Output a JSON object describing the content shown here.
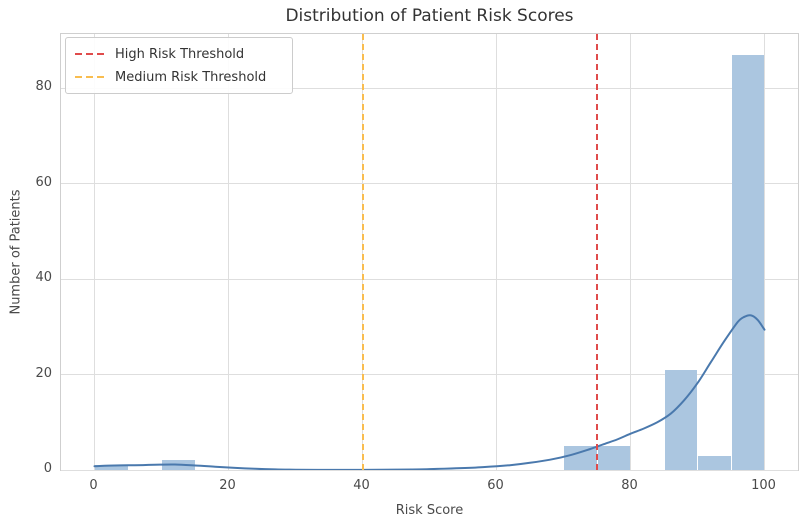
{
  "chart_data": {
    "type": "histogram",
    "title": "Distribution of Patient Risk Scores",
    "xlabel": "Risk Score",
    "ylabel": "Number of Patients",
    "xlim": [
      -5,
      105
    ],
    "ylim": [
      0,
      91.35
    ],
    "x_ticks": [
      0,
      20,
      40,
      60,
      80,
      100
    ],
    "y_ticks": [
      0,
      20,
      40,
      60,
      80
    ],
    "grid": true,
    "legend_position": "upper left",
    "bins": [
      {
        "x0": 0,
        "x1": 5,
        "count": 1
      },
      {
        "x0": 10,
        "x1": 15,
        "count": 2
      },
      {
        "x0": 70,
        "x1": 75,
        "count": 5
      },
      {
        "x0": 75,
        "x1": 80,
        "count": 5
      },
      {
        "x0": 85,
        "x1": 90,
        "count": 21
      },
      {
        "x0": 90,
        "x1": 95,
        "count": 3
      },
      {
        "x0": 95,
        "x1": 100,
        "count": 87
      }
    ],
    "kde_curve": [
      [
        0,
        0.8
      ],
      [
        3,
        0.95
      ],
      [
        6,
        1.0
      ],
      [
        9,
        1.1
      ],
      [
        12,
        1.15
      ],
      [
        15,
        0.95
      ],
      [
        18,
        0.7
      ],
      [
        21,
        0.45
      ],
      [
        24,
        0.25
      ],
      [
        27,
        0.12
      ],
      [
        30,
        0.06
      ],
      [
        35,
        0.03
      ],
      [
        40,
        0.03
      ],
      [
        45,
        0.08
      ],
      [
        50,
        0.18
      ],
      [
        54,
        0.35
      ],
      [
        58,
        0.6
      ],
      [
        62,
        1.0
      ],
      [
        65,
        1.5
      ],
      [
        68,
        2.15
      ],
      [
        71,
        3.1
      ],
      [
        74,
        4.4
      ],
      [
        76,
        5.4
      ],
      [
        78,
        6.4
      ],
      [
        80,
        7.6
      ],
      [
        82,
        8.7
      ],
      [
        84,
        10.0
      ],
      [
        86,
        11.8
      ],
      [
        88,
        14.6
      ],
      [
        90,
        18.2
      ],
      [
        92,
        22.6
      ],
      [
        94,
        27.0
      ],
      [
        96,
        31.0
      ],
      [
        97,
        32.1
      ],
      [
        98,
        32.4
      ],
      [
        99,
        31.4
      ],
      [
        100,
        29.4
      ]
    ],
    "thresholds": [
      {
        "label": "High Risk Threshold",
        "x": 75,
        "color": "#e04b4b"
      },
      {
        "label": "Medium Risk Threshold",
        "x": 40,
        "color": "#f9bd4f"
      }
    ],
    "colors": {
      "bar_fill": "#abc6e0",
      "kde_line": "#4a79ad",
      "grid": "#dedede",
      "spine": "#cfcfcf",
      "text": "#333333"
    }
  }
}
